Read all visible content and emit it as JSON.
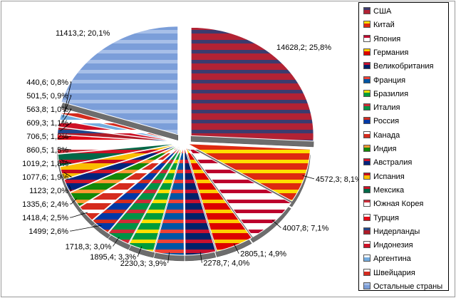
{
  "chart_data": {
    "type": "pie",
    "title": "",
    "style": "exploded 3D pie, slices filled with national flags",
    "legend_position": "right",
    "slices": [
      {
        "name": "США",
        "value": 14628.2,
        "label": "14628,2; 25,8%",
        "color": "#b22234",
        "color2": "#3c3b6e"
      },
      {
        "name": "Китай",
        "value": 4572.3,
        "label": "4572,3; 8,1%",
        "color": "#de2910",
        "color2": "#ffde00"
      },
      {
        "name": "Япония",
        "value": 4007.8,
        "label": "4007,8; 7,1%",
        "color": "#ffffff",
        "color2": "#bc002d"
      },
      {
        "name": "Германия",
        "value": 2805.1,
        "label": "2805,1; 4,9%",
        "color": "#dd0000",
        "color2": "#ffce00"
      },
      {
        "name": "Великобритания",
        "value": 2278.7,
        "label": "2278,7; 4,0%",
        "color": "#012169",
        "color2": "#c8102e"
      },
      {
        "name": "Франция",
        "value": 2230.3,
        "label": "2230,3; 3,9%",
        "color": "#0055a4",
        "color2": "#ef4135"
      },
      {
        "name": "Бразилия",
        "value": 1895.4,
        "label": "1895,4; 3,3%",
        "color": "#009c3b",
        "color2": "#ffdf00"
      },
      {
        "name": "Италия",
        "value": 1718.3,
        "label": "1718,3; 3,0%",
        "color": "#009246",
        "color2": "#ce2b37"
      },
      {
        "name": "Россия",
        "value": 1499,
        "label": "1499; 2,6%",
        "color": "#0039a6",
        "color2": "#d52b1e"
      },
      {
        "name": "Канада",
        "value": 1418.4,
        "label": "1418,4; 2,5%",
        "color": "#d52b1e",
        "color2": "#ffffff"
      },
      {
        "name": "Индия",
        "value": 1335.6,
        "label": "1335,6; 2,4%",
        "color": "#138808",
        "color2": "#ff9933"
      },
      {
        "name": "Австралия",
        "value": 1123,
        "label": "1123; 2,0%",
        "color": "#00247d",
        "color2": "#cf142b"
      },
      {
        "name": "Испания",
        "value": 1077.6,
        "label": "1077,6; 1,9%",
        "color": "#fabd00",
        "color2": "#c60b1e"
      },
      {
        "name": "Мексика",
        "value": 1019.2,
        "label": "1019,2; 1,8%",
        "color": "#006847",
        "color2": "#ce1126"
      },
      {
        "name": "Южная Корея",
        "value": 860.5,
        "label": "860,5; 1,5%",
        "color": "#ffffff",
        "color2": "#cd2e3a"
      },
      {
        "name": "Турция",
        "value": 706.5,
        "label": "706,5; 1,2%",
        "color": "#e30a17",
        "color2": "#ffffff"
      },
      {
        "name": "Нидерланды",
        "value": 609.3,
        "label": "609,3; 1,1%",
        "color": "#ae1c28",
        "color2": "#21468b"
      },
      {
        "name": "Индонезия",
        "value": 563.8,
        "label": "563,8; 1,0%",
        "color": "#ce1126",
        "color2": "#ffffff"
      },
      {
        "name": "Аргентина",
        "value": 501.5,
        "label": "501,5; 0,9%",
        "color": "#74acdf",
        "color2": "#ffffff"
      },
      {
        "name": "Швейцария",
        "value": 440.6,
        "label": "440,6; 0,8%",
        "color": "#d52b1e",
        "color2": "#ffffff"
      },
      {
        "name": "Остальные страны",
        "value": 11413.2,
        "label": "11413,2; 20,1%",
        "color": "#7b9ed9",
        "color2": "#a7bfe8"
      }
    ]
  }
}
